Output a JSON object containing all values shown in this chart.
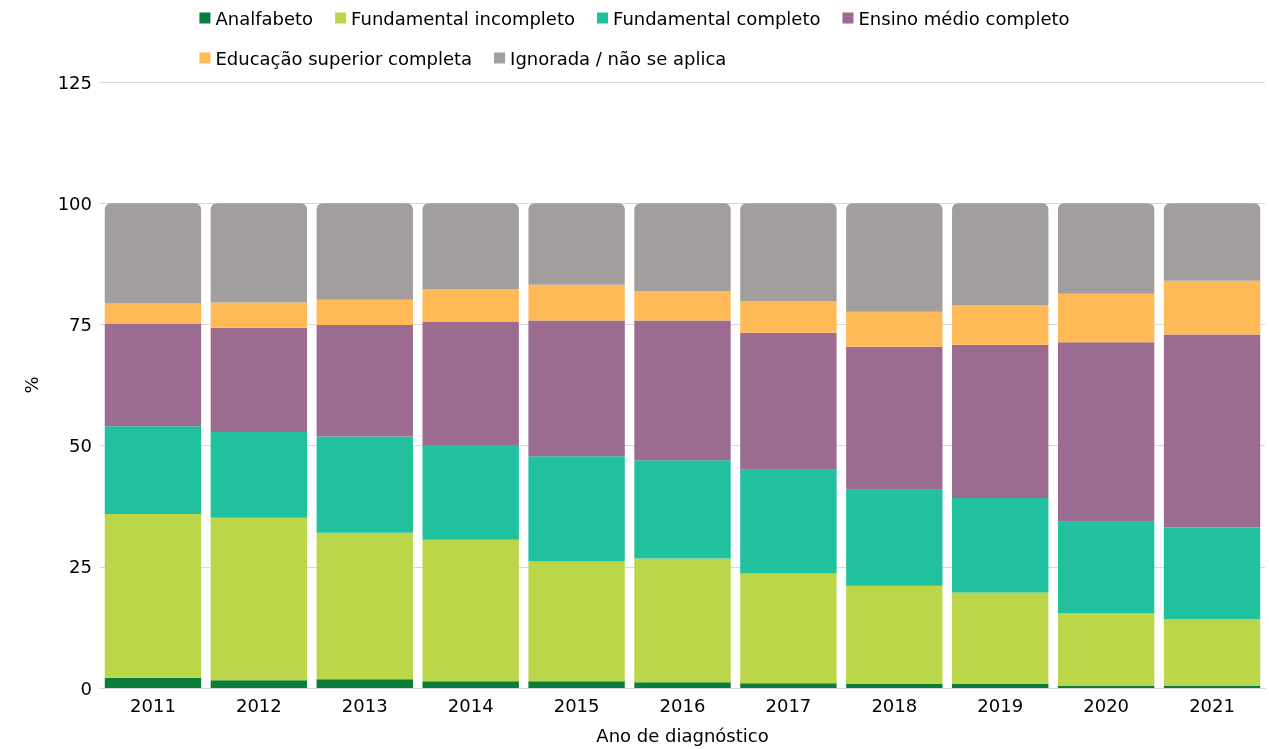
{
  "chart_data": {
    "type": "bar",
    "stacked": true,
    "xlabel": "Ano de diagnóstico",
    "ylabel": "%",
    "categories": [
      "2011",
      "2012",
      "2013",
      "2014",
      "2015",
      "2016",
      "2017",
      "2018",
      "2019",
      "2020",
      "2021"
    ],
    "series": [
      {
        "name": "Analfabeto",
        "color": "#0a7d3c",
        "values": [
          2.1,
          1.6,
          1.8,
          1.4,
          1.4,
          1.2,
          1.0,
          0.8,
          0.8,
          0.4,
          0.4
        ]
      },
      {
        "name": "Fundamental incompleto",
        "color": "#bcd64a",
        "values": [
          33.8,
          33.5,
          30.2,
          29.2,
          24.7,
          25.5,
          22.6,
          20.3,
          18.9,
          15.0,
          13.8
        ]
      },
      {
        "name": "Fundamental completo",
        "color": "#20c19c",
        "values": [
          18.1,
          17.7,
          19.9,
          19.5,
          21.7,
          20.3,
          21.4,
          19.8,
          19.5,
          18.9,
          18.9
        ]
      },
      {
        "name": "Ensino médio completo",
        "color": "#9b6c8f",
        "values": [
          21.2,
          21.5,
          23.0,
          25.5,
          28.0,
          28.8,
          28.3,
          29.5,
          31.6,
          37.0,
          39.8
        ]
      },
      {
        "name": "Educação superior completa",
        "color": "#ffb957",
        "values": [
          4.1,
          5.2,
          5.2,
          6.7,
          7.4,
          6.1,
          6.4,
          7.2,
          8.1,
          10.0,
          11.1
        ]
      },
      {
        "name": "Ignorada / não se aplica",
        "color": "#a39e9e",
        "values": [
          20.7,
          20.5,
          19.9,
          17.7,
          16.8,
          18.1,
          20.3,
          22.4,
          21.1,
          18.7,
          16.0
        ]
      }
    ],
    "ylim": [
      0,
      125
    ],
    "yticks": [
      0,
      25,
      50,
      75,
      100,
      125
    ],
    "grid": "y",
    "legend": "top"
  }
}
